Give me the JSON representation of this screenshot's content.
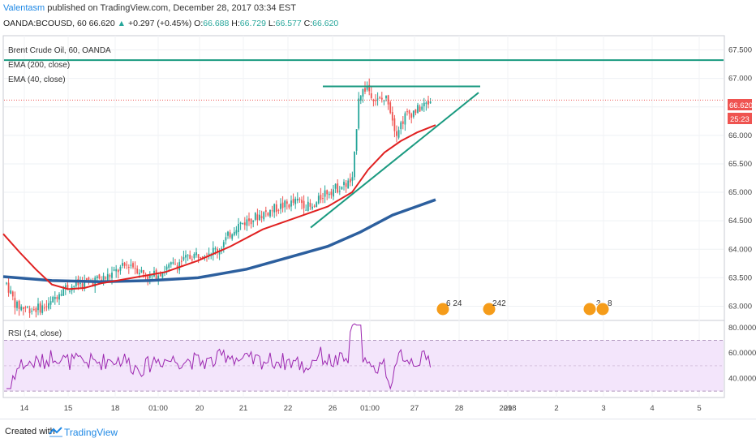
{
  "header": {
    "author": "Valentasm",
    "published": "published on TradingView.com, December 28, 2017 03:34 EST",
    "symbol_line": "OANDA:BCOUSD, 60",
    "last": "66.620",
    "change": "+0.297 (+0.45%)",
    "o_label": "O:",
    "o": "66.688",
    "h_label": "H:",
    "h": "66.729",
    "l_label": "L:",
    "l": "66.577",
    "c_label": "C:",
    "c": "66.620"
  },
  "legend": {
    "title": "Brent Crude Oil, 60, OANDA",
    "ema200": "EMA (200, close)",
    "ema40": "EMA (40, close)",
    "rsi": "RSI (14, close)"
  },
  "price_badge": {
    "price": "66.620",
    "countdown": "25:23"
  },
  "event_badges": [
    {
      "label": "6 24"
    },
    {
      "label": "242"
    },
    {
      "label": "3"
    },
    {
      "label": "8"
    }
  ],
  "footer": {
    "created_with": "Created with",
    "brand": "TradingView"
  },
  "colors": {
    "up": "#26a69a",
    "down": "#ef5350",
    "ema40": "#e02020",
    "ema200": "#2c5f9e",
    "trend": "#1a9a80",
    "rsi": "#9c27b0",
    "rsi_band": "#f3e5fb"
  },
  "chart_data": [
    {
      "type": "candlestick",
      "title": "Brent Crude Oil, 60, OANDA",
      "y_ticks": [
        67.5,
        67.0,
        66.5,
        66.0,
        65.5,
        65.0,
        64.5,
        64.0,
        63.5,
        63.0
      ],
      "y_tick_labels": [
        "67.500",
        "67.000",
        "66.500",
        "66.000",
        "65.500",
        "65.000",
        "64.500",
        "64.000",
        "63.500",
        "63.000"
      ],
      "ylim": [
        62.75,
        67.75
      ],
      "x_tick_labels": [
        "14",
        "15",
        "18",
        "01:00",
        "20",
        "21",
        "22",
        "26",
        "01:00",
        "27",
        "28",
        "29",
        "2018",
        "2",
        "3",
        "4",
        "5"
      ],
      "last_price": 66.62,
      "horizontal_line": 67.32,
      "resistance_line": 66.86,
      "ema200_path": [
        [
          0,
          63.52
        ],
        [
          60,
          63.45
        ],
        [
          120,
          63.43
        ],
        [
          180,
          63.45
        ],
        [
          240,
          63.5
        ],
        [
          300,
          63.65
        ],
        [
          350,
          63.85
        ],
        [
          400,
          64.05
        ],
        [
          440,
          64.3
        ],
        [
          480,
          64.6
        ],
        [
          533,
          64.87
        ]
      ],
      "ema40_path": [
        [
          0,
          64.27
        ],
        [
          20,
          63.95
        ],
        [
          40,
          63.65
        ],
        [
          60,
          63.38
        ],
        [
          80,
          63.3
        ],
        [
          100,
          63.32
        ],
        [
          120,
          63.4
        ],
        [
          160,
          63.5
        ],
        [
          200,
          63.6
        ],
        [
          240,
          63.8
        ],
        [
          280,
          64.05
        ],
        [
          320,
          64.35
        ],
        [
          360,
          64.55
        ],
        [
          400,
          64.75
        ],
        [
          430,
          65.0
        ],
        [
          450,
          65.4
        ],
        [
          470,
          65.7
        ],
        [
          490,
          65.9
        ],
        [
          510,
          66.05
        ],
        [
          533,
          66.18
        ]
      ],
      "series": [
        {
          "name": "EMA (200, close)"
        },
        {
          "name": "EMA (40, close)"
        }
      ]
    },
    {
      "type": "line",
      "title": "RSI (14, close)",
      "y_ticks": [
        80,
        60,
        40
      ],
      "y_tick_labels": [
        "80.0000",
        "60.0000",
        "40.0000"
      ],
      "ylim": [
        25,
        85
      ],
      "band": [
        30,
        70
      ],
      "midline": 50
    }
  ]
}
